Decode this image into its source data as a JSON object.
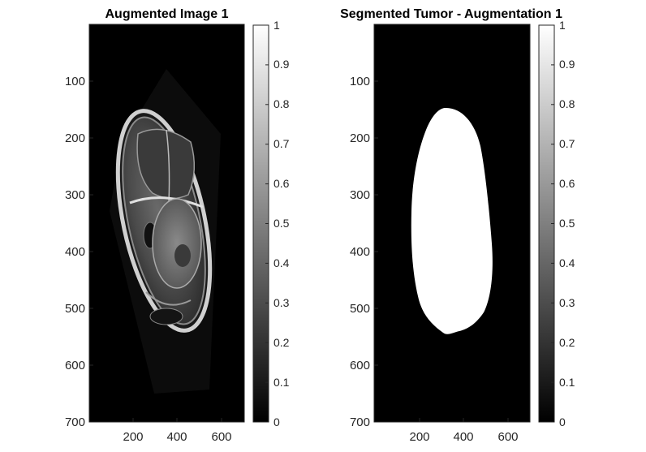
{
  "figure": {
    "panels": [
      {
        "title": "Augmented Image 1",
        "content": "mri-brain-scan",
        "y_ticks": [
          "100",
          "200",
          "300",
          "400",
          "500",
          "600",
          "700"
        ],
        "x_ticks": [
          "200",
          "400",
          "600"
        ],
        "colorbar_ticks": [
          "0",
          "0.1",
          "0.2",
          "0.3",
          "0.4",
          "0.5",
          "0.6",
          "0.7",
          "0.8",
          "0.9",
          "1"
        ]
      },
      {
        "title": "Segmented Tumor - Augmentation 1",
        "content": "binary-tumor-mask",
        "y_ticks": [
          "100",
          "200",
          "300",
          "400",
          "500",
          "600",
          "700"
        ],
        "x_ticks": [
          "200",
          "400",
          "600"
        ],
        "colorbar_ticks": [
          "0",
          "0.1",
          "0.2",
          "0.3",
          "0.4",
          "0.5",
          "0.6",
          "0.7",
          "0.8",
          "0.9",
          "1"
        ]
      }
    ],
    "colormap": "gray",
    "colors": {
      "background": "#000000",
      "foreground": "#ffffff",
      "axis": "#262626"
    }
  }
}
